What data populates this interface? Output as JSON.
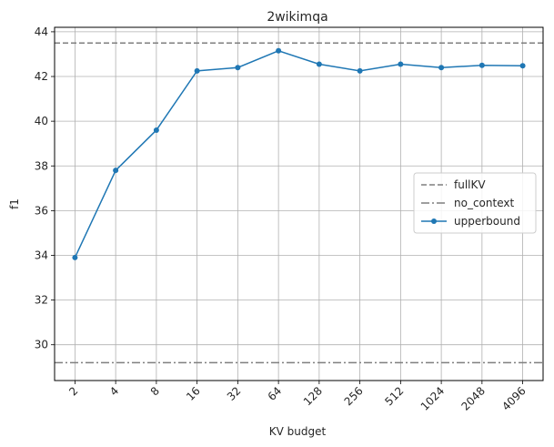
{
  "chart_data": {
    "type": "line",
    "title": "2wikimqa",
    "xlabel": "KV budget",
    "ylabel": "f1",
    "categories": [
      "2",
      "4",
      "8",
      "16",
      "32",
      "64",
      "128",
      "256",
      "512",
      "1024",
      "2048",
      "4096"
    ],
    "ylim": [
      28.4,
      44.2
    ],
    "yticks": [
      "30",
      "32",
      "34",
      "36",
      "38",
      "40",
      "42",
      "44"
    ],
    "grid": true,
    "legend_position": "center-right",
    "reference_lines": [
      {
        "name": "fullKV",
        "value": 43.5,
        "style": "dashed",
        "color": "#7f7f7f"
      },
      {
        "name": "no_context",
        "value": 29.2,
        "style": "dashdot",
        "color": "#7f7f7f"
      }
    ],
    "series": [
      {
        "name": "upperbound",
        "color": "#1f77b4",
        "marker": "circle",
        "values": [
          33.9,
          37.8,
          39.6,
          42.25,
          42.4,
          43.15,
          42.55,
          42.25,
          42.55,
          42.4,
          42.5,
          42.48
        ]
      }
    ]
  }
}
